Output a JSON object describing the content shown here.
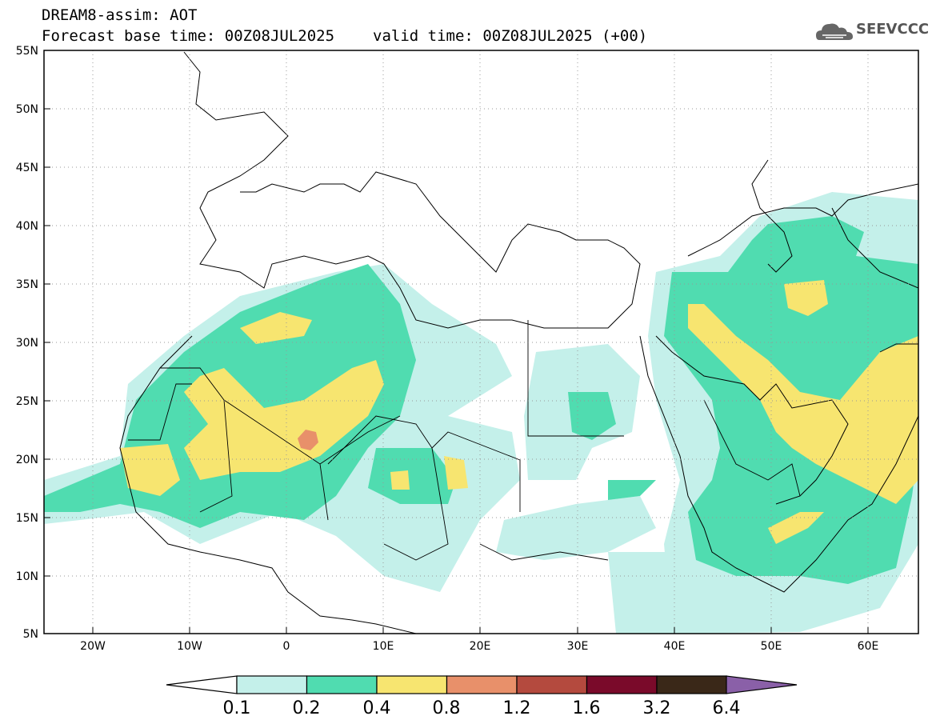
{
  "header": {
    "title": "DREAM8-assim: AOT",
    "base_time_label": "Forecast base time: 00Z08JUL2025",
    "valid_time_label": "valid time: 00Z08JUL2025 (+00)"
  },
  "logo": {
    "text": "SEEVCCC",
    "icon": "cloud-icon",
    "color": "#555555"
  },
  "map": {
    "lon_range": [
      -25,
      65
    ],
    "lat_range": [
      5,
      55
    ],
    "lat_labels": [
      "55N",
      "50N",
      "45N",
      "40N",
      "35N",
      "30N",
      "25N",
      "20N",
      "15N",
      "10N",
      "5N"
    ],
    "lon_labels": [
      "20W",
      "10W",
      "0",
      "10E",
      "20E",
      "30E",
      "40E",
      "50E",
      "60E"
    ]
  },
  "colorbar": {
    "levels": [
      "0.1",
      "0.2",
      "0.4",
      "0.8",
      "1.2",
      "1.6",
      "3.2",
      "6.4"
    ],
    "colors": [
      "#c4f0ea",
      "#50dcb0",
      "#f7e570",
      "#e8906a",
      "#b44a3e",
      "#7a0a2a",
      "#3a2818",
      "#8a60a8"
    ],
    "under_color": "#ffffff"
  }
}
